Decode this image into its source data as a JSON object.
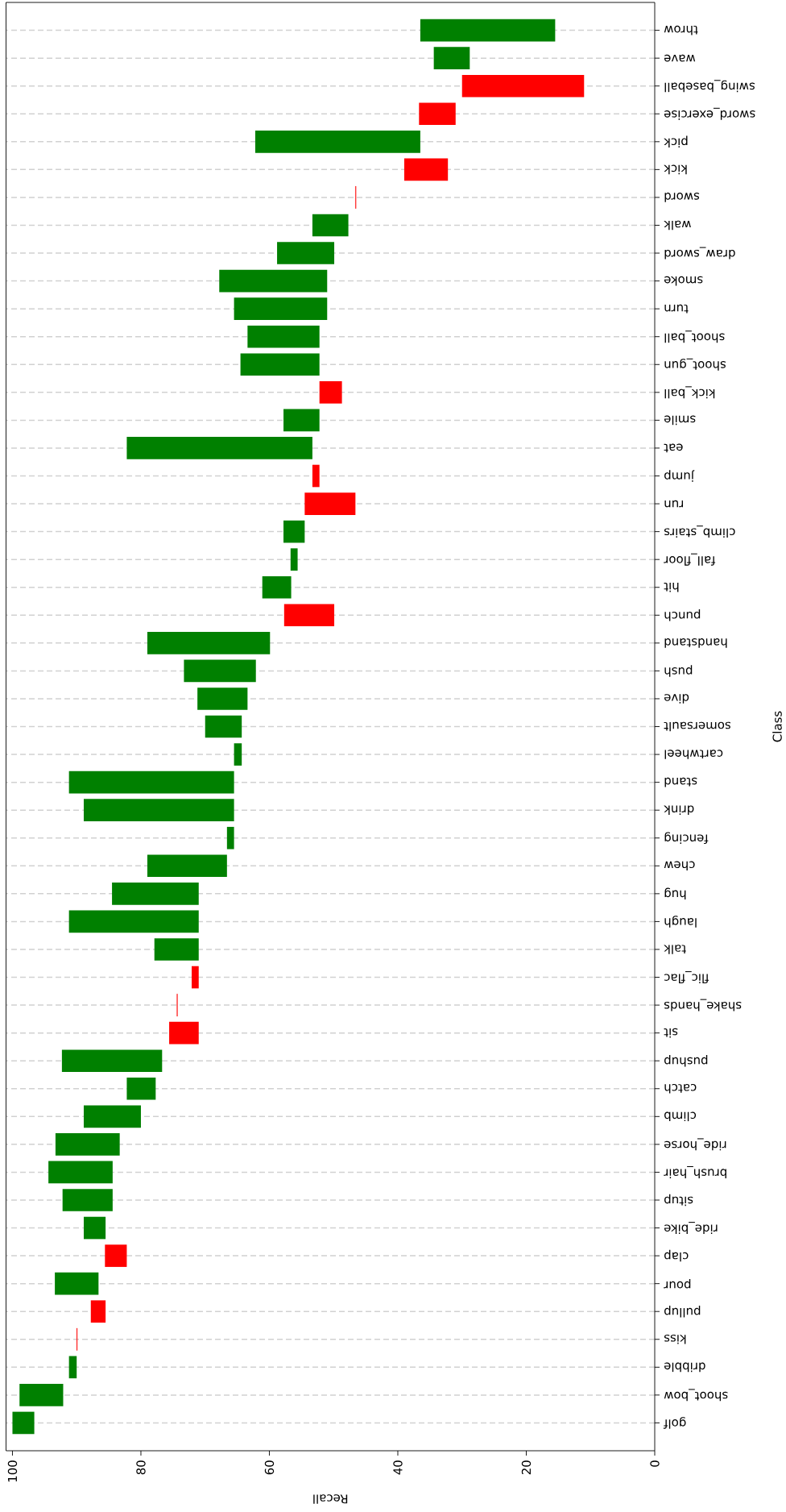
{
  "chart_data": {
    "type": "bar",
    "orientation": "horizontal",
    "xlabel": "Recall",
    "ylabel": "Class",
    "categories": [
      "throw",
      "wave",
      "swing_baseball",
      "sword_exercise",
      "pick",
      "kick",
      "sword",
      "walk",
      "draw_sword",
      "smoke",
      "turn",
      "shoot_ball",
      "shoot_gun",
      "kick_ball",
      "smile",
      "eat",
      "jump",
      "run",
      "climb_stairs",
      "fall_floor",
      "hit",
      "punch",
      "handstand",
      "push",
      "dive",
      "somersault",
      "cartwheel",
      "stand",
      "drink",
      "fencing",
      "chew",
      "hug",
      "laugh",
      "talk",
      "flic_flac",
      "shake_hands",
      "sit",
      "pushup",
      "catch",
      "climb",
      "ride_horse",
      "brush_hair",
      "situp",
      "ride_bike",
      "clap",
      "pour",
      "pullup",
      "kiss",
      "dribble",
      "shoot_bow",
      "golf"
    ],
    "base": [
      15.5,
      28.8,
      30.0,
      36.7,
      36.5,
      39.0,
      46.6,
      47.7,
      49.9,
      51.0,
      51.0,
      52.2,
      52.2,
      52.2,
      52.2,
      53.3,
      53.3,
      54.5,
      54.5,
      55.6,
      56.6,
      57.7,
      59.9,
      62.1,
      63.4,
      64.3,
      64.3,
      65.5,
      65.5,
      65.5,
      66.6,
      71.0,
      71.0,
      71.0,
      72.1,
      74.4,
      75.6,
      76.7,
      77.7,
      80.0,
      83.3,
      84.4,
      84.4,
      85.5,
      85.6,
      86.6,
      87.8,
      90.0,
      90.0,
      92.1,
      96.6
    ],
    "values": [
      21.0,
      5.6,
      -19.0,
      -5.7,
      25.7,
      -6.8,
      -0.1,
      5.6,
      8.9,
      16.8,
      14.5,
      11.2,
      12.3,
      -3.5,
      5.6,
      28.9,
      -1.1,
      -7.9,
      3.3,
      1.1,
      4.5,
      -7.8,
      19.1,
      11.2,
      7.8,
      5.7,
      1.2,
      25.7,
      23.4,
      1.1,
      12.4,
      13.5,
      20.2,
      6.9,
      -1.1,
      -0.1,
      -4.6,
      15.6,
      4.5,
      8.9,
      10.0,
      10.0,
      7.8,
      3.4,
      -3.4,
      6.8,
      -2.3,
      -0.1,
      1.2,
      6.8,
      3.4
    ],
    "colors": [
      "#008000",
      "#008000",
      "#ff0000",
      "#ff0000",
      "#008000",
      "#ff0000",
      "#ff0000",
      "#008000",
      "#008000",
      "#008000",
      "#008000",
      "#008000",
      "#008000",
      "#ff0000",
      "#008000",
      "#008000",
      "#ff0000",
      "#ff0000",
      "#008000",
      "#008000",
      "#008000",
      "#ff0000",
      "#008000",
      "#008000",
      "#008000",
      "#008000",
      "#008000",
      "#008000",
      "#008000",
      "#008000",
      "#008000",
      "#008000",
      "#008000",
      "#008000",
      "#ff0000",
      "#ff0000",
      "#ff0000",
      "#008000",
      "#008000",
      "#008000",
      "#008000",
      "#008000",
      "#008000",
      "#008000",
      "#ff0000",
      "#008000",
      "#ff0000",
      "#ff0000",
      "#008000",
      "#008000",
      "#008000"
    ],
    "xlim": [
      101,
      0
    ],
    "xticks": [
      0,
      20,
      40,
      60,
      80,
      100
    ],
    "grid": "y"
  }
}
